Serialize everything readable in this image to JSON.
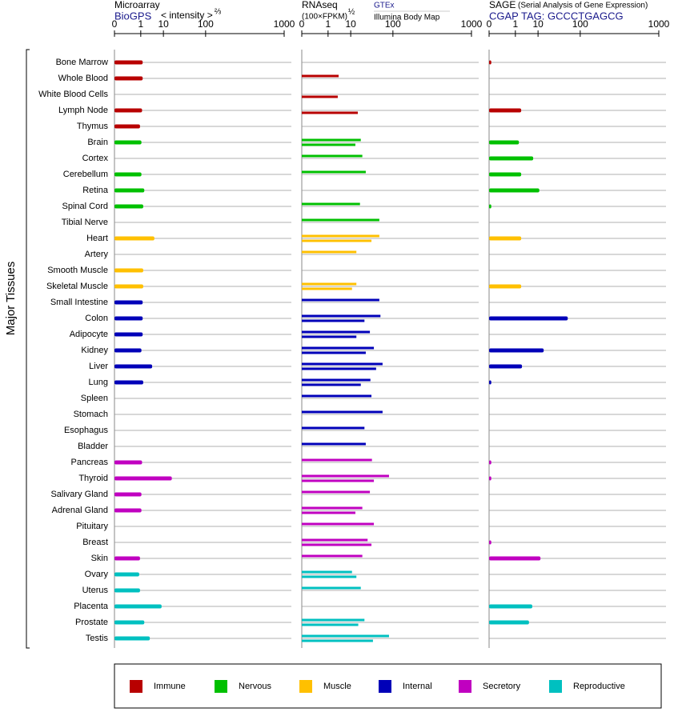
{
  "chart_data": {
    "type": "bar",
    "orientation": "horizontal",
    "y_label": "Major Tissues",
    "xscale": "power",
    "xlim": [
      0,
      1000
    ],
    "xticks": [
      0,
      1,
      10,
      100,
      1000
    ],
    "grid": true,
    "groups": [
      {
        "name": "Immune",
        "color": "#b80000",
        "categories": [
          "Bone Marrow",
          "Whole Blood",
          "White Blood Cells",
          "Lymph Node",
          "Thymus"
        ]
      },
      {
        "name": "Nervous",
        "color": "#00c000",
        "categories": [
          "Brain",
          "Cortex",
          "Cerebellum",
          "Retina",
          "Spinal Cord",
          "Tibial Nerve"
        ]
      },
      {
        "name": "Muscle",
        "color": "#ffc000",
        "categories": [
          "Heart",
          "Artery",
          "Smooth Muscle",
          "Skeletal Muscle"
        ]
      },
      {
        "name": "Internal",
        "color": "#0000b8",
        "categories": [
          "Small Intestine",
          "Colon",
          "Adipocyte",
          "Kidney",
          "Liver",
          "Lung",
          "Spleen",
          "Stomach",
          "Esophagus",
          "Bladder"
        ]
      },
      {
        "name": "Secretory",
        "color": "#c000c0",
        "categories": [
          "Pancreas",
          "Thyroid",
          "Salivary Gland",
          "Adrenal Gland",
          "Pituitary",
          "Breast",
          "Skin"
        ]
      },
      {
        "name": "Reproductive",
        "color": "#00c0c0",
        "categories": [
          "Ovary",
          "Uterus",
          "Placenta",
          "Prostate",
          "Testis"
        ]
      }
    ],
    "panels": [
      {
        "title": "Microarray",
        "subtitle": "BioGPS",
        "axis_label": "< intensity >",
        "axis_label_exponent": "⅔",
        "series": [
          {
            "values": [
              1.3,
              1.3,
              null,
              1.2,
              0.9,
              1.1,
              null,
              1.1,
              1.6,
              1.4,
              null,
              4.7,
              null,
              1.4,
              1.4,
              1.3,
              1.3,
              1.3,
              1.1,
              3.8,
              1.4,
              null,
              null,
              null,
              null,
              1.2,
              18,
              1.1,
              1.1,
              null,
              null,
              0.9,
              0.8,
              0.9,
              8.7,
              1.6,
              3.0
            ]
          }
        ]
      },
      {
        "title": "RNAseq",
        "subtitle": "(100×FPKM)",
        "axis_label_exponent": "½",
        "series": [
          {
            "name": "GTEx",
            "values": [
              null,
              3.5,
              null,
              null,
              null,
              20,
              22,
              27,
              null,
              19,
              55,
              55,
              15,
              null,
              15,
              55,
              58,
              34,
              42,
              64,
              35,
              37,
              64,
              25,
              27,
              38,
              85,
              34,
              22,
              42,
              30,
              22,
              11,
              20,
              null,
              25,
              85
            ]
          },
          {
            "name": "Illumina Body Map",
            "values": [
              null,
              null,
              3.2,
              16.5,
              null,
              14,
              null,
              null,
              null,
              null,
              null,
              37,
              null,
              null,
              11,
              null,
              25,
              15,
              27,
              47,
              20,
              null,
              null,
              null,
              null,
              null,
              42,
              null,
              14,
              null,
              37,
              null,
              15,
              null,
              null,
              17,
              40
            ]
          }
        ]
      },
      {
        "title": "SAGE",
        "note": "(Serial Analysis of Gene Expression)",
        "subtitle": "CGAP",
        "tag": "TAG: GCCCTGAGCG",
        "series": [
          {
            "values": [
              0.0001,
              null,
              null,
              2.1,
              null,
              1.6,
              6.8,
              2.1,
              11,
              0.0001,
              null,
              2.1,
              null,
              null,
              2.1,
              null,
              58,
              null,
              15,
              2.3,
              0.0001,
              null,
              null,
              null,
              null,
              0.0001,
              0.0001,
              null,
              null,
              null,
              0.0001,
              12,
              null,
              null,
              6.3,
              4.7,
              null
            ]
          }
        ]
      }
    ]
  }
}
